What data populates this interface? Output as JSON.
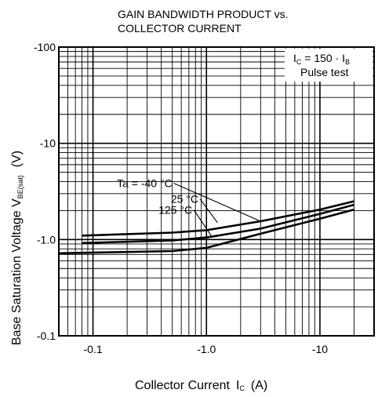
{
  "chart_data": {
    "type": "line",
    "title_line1": "GAIN BANDWIDTH PRODUCT vs.",
    "title_line2": "COLLECTOR CURRENT",
    "xlabel_main": "Collector Current",
    "xlabel_symbol": "I",
    "xlabel_symbol_sub": "C",
    "xlabel_unit": "(A)",
    "ylabel_main": "Base Saturation Voltage V",
    "ylabel_sub": "BE(sat)",
    "ylabel_unit": "(V)",
    "x_scale": "log",
    "y_scale": "log",
    "xlim": [
      -0.05,
      -30
    ],
    "ylim": [
      -0.1,
      -100
    ],
    "x_ticks": [
      {
        "value": -0.1,
        "label": "-0.1"
      },
      {
        "value": -1.0,
        "label": "-1.0"
      },
      {
        "value": -10,
        "label": "-10"
      }
    ],
    "y_ticks": [
      {
        "value": -0.1,
        "label": "-0.1"
      },
      {
        "value": -1.0,
        "label": "-1.0"
      },
      {
        "value": -10,
        "label": "-10"
      },
      {
        "value": -100,
        "label": "-100"
      }
    ],
    "grid": true,
    "condition_line1": "I",
    "condition_sub1": "C",
    "condition_mid": " = 150 · I",
    "condition_sub2": "B",
    "condition_line2": "Pulse test",
    "series": [
      {
        "name": "Ta = -40 °C",
        "x": [
          -0.08,
          -0.5,
          -1.0,
          -3.0,
          -10,
          -20
        ],
        "y": [
          -1.1,
          -1.18,
          -1.25,
          -1.55,
          -2.05,
          -2.5
        ]
      },
      {
        "name": "25 °C",
        "x": [
          -0.08,
          -0.5,
          -1.0,
          -3.0,
          -10,
          -20
        ],
        "y": [
          -0.92,
          -0.98,
          -1.05,
          -1.3,
          -1.85,
          -2.3
        ]
      },
      {
        "name": "125 °C",
        "x": [
          -0.05,
          -0.5,
          -1.0,
          -3.0,
          -10,
          -20
        ],
        "y": [
          -0.72,
          -0.76,
          -0.82,
          -1.15,
          -1.65,
          -2.05
        ]
      }
    ],
    "series_labels": [
      {
        "series": 0,
        "text": "Ta = -40 °C",
        "lx": -0.5,
        "ly": -3.5,
        "px": -3.0,
        "py": -1.55
      },
      {
        "series": 1,
        "text": "25 °C",
        "lx": -0.85,
        "ly": -2.4,
        "px": -1.25,
        "py": -1.5
      },
      {
        "series": 2,
        "text": "125 °C",
        "lx": -0.75,
        "ly": -1.85,
        "px": -1.1,
        "py": -1.1
      }
    ]
  }
}
